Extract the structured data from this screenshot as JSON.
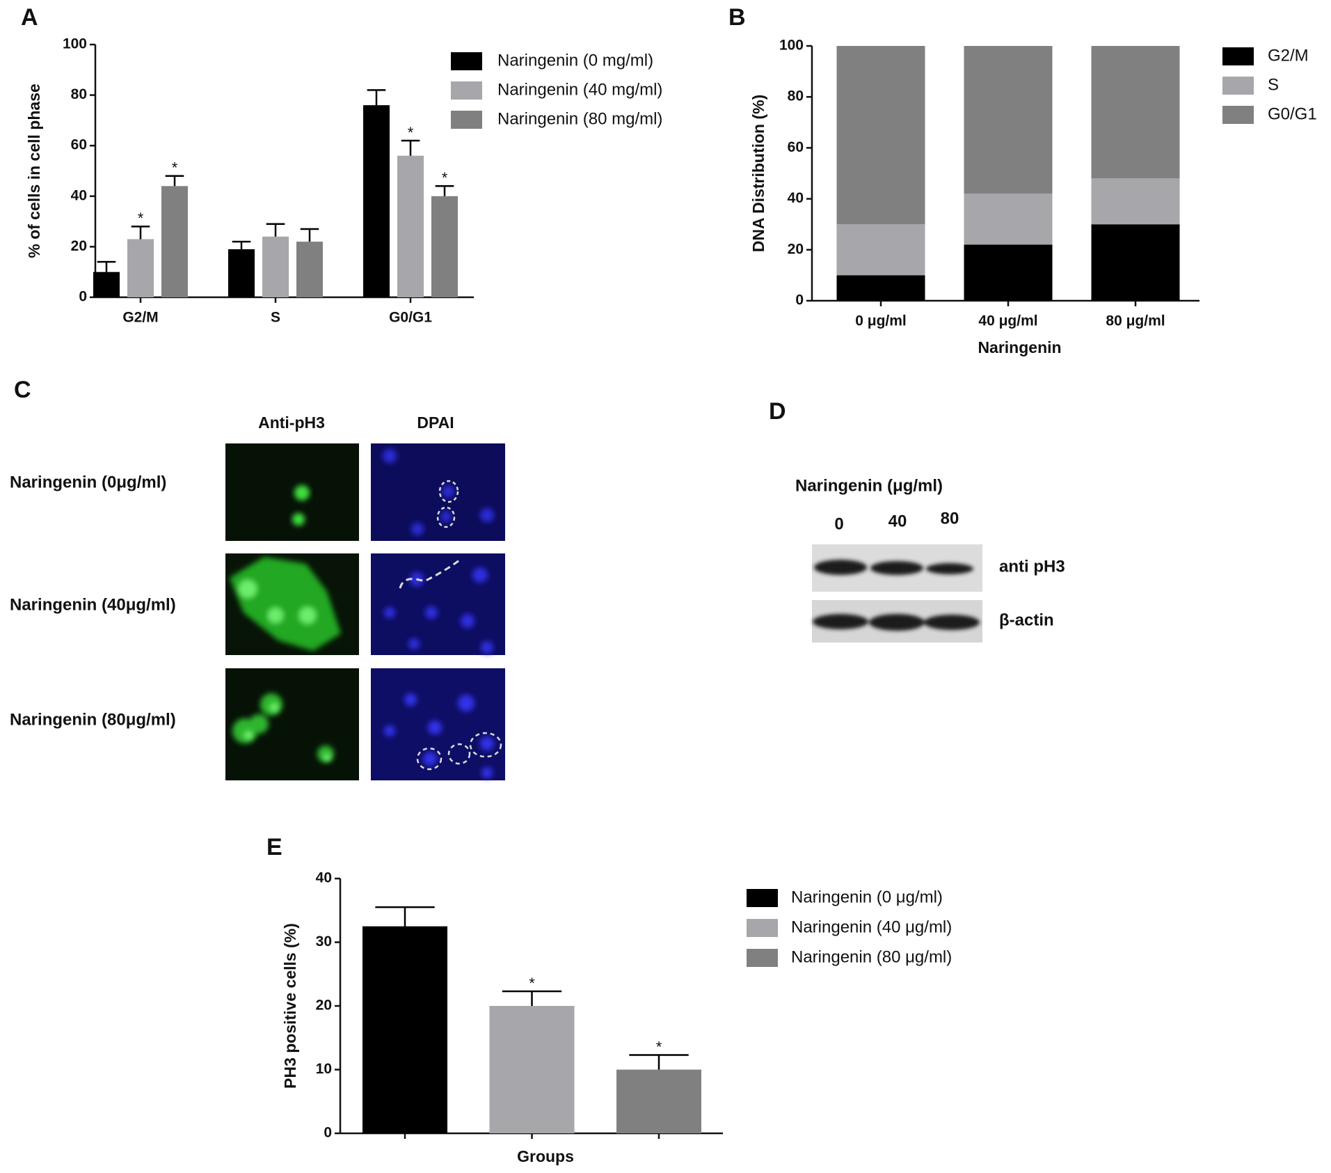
{
  "chart_data": [
    {
      "type": "bar",
      "panel": "A",
      "ylabel": "% of cells in cell phase",
      "categories": [
        "G2/M",
        "S",
        "G0/G1"
      ],
      "series": [
        {
          "name": "Naringenin (0 mg/ml)",
          "color": "#000000",
          "values": [
            10,
            19,
            76
          ],
          "errors": [
            4,
            3,
            6
          ],
          "significance": [
            null,
            null,
            null
          ]
        },
        {
          "name": "Naringenin (40 mg/ml)",
          "color": "#a6a6ab",
          "values": [
            23,
            24,
            56
          ],
          "errors": [
            5,
            5,
            6
          ],
          "significance": [
            "*",
            null,
            "*"
          ]
        },
        {
          "name": "Naringenin (80 mg/ml)",
          "color": "#808080",
          "values": [
            44,
            22,
            40
          ],
          "errors": [
            4,
            5,
            4
          ],
          "significance": [
            "*",
            null,
            "*"
          ]
        }
      ],
      "ylim": [
        0,
        100
      ],
      "yticks": [
        0,
        20,
        40,
        60,
        80,
        100
      ]
    },
    {
      "type": "bar",
      "stacked": true,
      "panel": "B",
      "ylabel": "DNA Distribution (%)",
      "xlabel": "Naringenin",
      "categories": [
        "0 μg/ml",
        "40 μg/ml",
        "80 μg/ml"
      ],
      "series": [
        {
          "name": "G2/M",
          "color": "#000000",
          "values": [
            10,
            22,
            30
          ]
        },
        {
          "name": "S",
          "color": "#a6a6ab",
          "values": [
            20,
            20,
            18
          ]
        },
        {
          "name": "G0/G1",
          "color": "#808080",
          "values": [
            70,
            58,
            52
          ]
        }
      ],
      "ylim": [
        0,
        100
      ],
      "yticks": [
        0,
        20,
        40,
        60,
        80,
        100
      ]
    },
    {
      "type": "bar",
      "panel": "E",
      "ylabel": "PH3 positive cells (%)",
      "xlabel": "Groups",
      "categories": [
        null,
        null,
        null
      ],
      "values": [
        32.5,
        20,
        10
      ],
      "errors": [
        3,
        2.3,
        2.3
      ],
      "significance": [
        null,
        "*",
        "*"
      ],
      "colors": [
        "#000000",
        "#a6a6ab",
        "#808080"
      ],
      "legend_labels": [
        "Naringenin (0 μg/ml)",
        "Naringenin (40 μg/ml)",
        "Naringenin (80 μg/ml)"
      ],
      "ylim": [
        0,
        40
      ],
      "yticks": [
        0,
        10,
        20,
        30,
        40
      ]
    }
  ],
  "microscopy": {
    "panel": "C",
    "columns": [
      "Anti-pH3",
      "DPAI"
    ],
    "rows": [
      "Naringenin (0μg/ml)",
      "Naringenin (40μg/ml)",
      "Naringenin (80μg/ml)"
    ]
  },
  "western_blot": {
    "panel": "D",
    "title": "Naringenin (μg/ml)",
    "lanes": [
      "0",
      "40",
      "80"
    ],
    "bands": [
      "anti pH3",
      "β-actin"
    ]
  }
}
